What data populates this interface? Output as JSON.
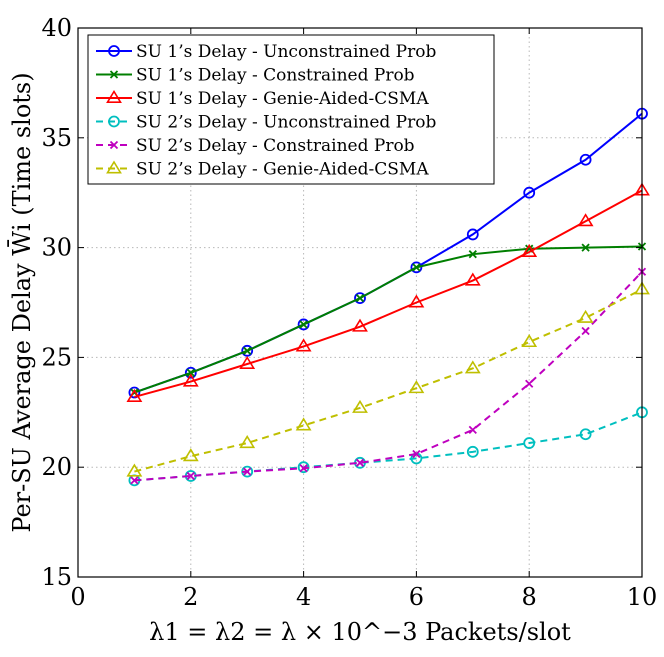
{
  "chart_data": {
    "type": "line",
    "title": "",
    "xlabel": "λ1 = λ2 = λ × 10^−3 Packets/slot",
    "ylabel": "Per-SU Average Delay W̄i (Time slots)",
    "xlim": [
      0,
      10
    ],
    "ylim": [
      15,
      40
    ],
    "xticks": [
      0,
      2,
      4,
      6,
      8,
      10
    ],
    "yticks": [
      15,
      20,
      25,
      30,
      35,
      40
    ],
    "grid": true,
    "legend_position": "top-left",
    "x": [
      1,
      2,
      3,
      4,
      5,
      6,
      7,
      8,
      9,
      10
    ],
    "series": [
      {
        "name": "SU 1’s Delay - Unconstrained Prob",
        "color": "#0000ff",
        "dash": "solid",
        "marker": "circle",
        "values": [
          23.4,
          24.3,
          25.3,
          26.5,
          27.7,
          29.1,
          30.6,
          32.5,
          34.0,
          36.1
        ]
      },
      {
        "name": "SU 1’s Delay - Constrained Prob",
        "color": "#007f00",
        "dash": "solid",
        "marker": "x",
        "values": [
          23.4,
          24.3,
          25.3,
          26.5,
          27.7,
          29.1,
          29.7,
          29.95,
          30.0,
          30.05
        ]
      },
      {
        "name": "SU 1’s Delay - Genie-Aided-CSMA",
        "color": "#ff0000",
        "dash": "solid",
        "marker": "triangle",
        "values": [
          23.2,
          23.9,
          24.7,
          25.5,
          26.4,
          27.5,
          28.5,
          29.8,
          31.2,
          32.6
        ]
      },
      {
        "name": "SU 2’s Delay - Unconstrained Prob",
        "color": "#00bfbf",
        "dash": "dashed",
        "marker": "circle",
        "values": [
          19.4,
          19.6,
          19.8,
          20.0,
          20.2,
          20.4,
          20.7,
          21.1,
          21.5,
          22.5
        ]
      },
      {
        "name": "SU 2’s Delay - Constrained Prob",
        "color": "#bf00bf",
        "dash": "dashed",
        "marker": "x",
        "values": [
          19.4,
          19.6,
          19.8,
          19.95,
          20.2,
          20.6,
          21.7,
          23.8,
          26.2,
          28.9
        ]
      },
      {
        "name": "SU 2’s Delay - Genie-Aided-CSMA",
        "color": "#bfbf00",
        "dash": "dashed",
        "marker": "triangle",
        "values": [
          19.8,
          20.5,
          21.1,
          21.9,
          22.7,
          23.6,
          24.5,
          25.7,
          26.8,
          28.1
        ]
      }
    ]
  }
}
